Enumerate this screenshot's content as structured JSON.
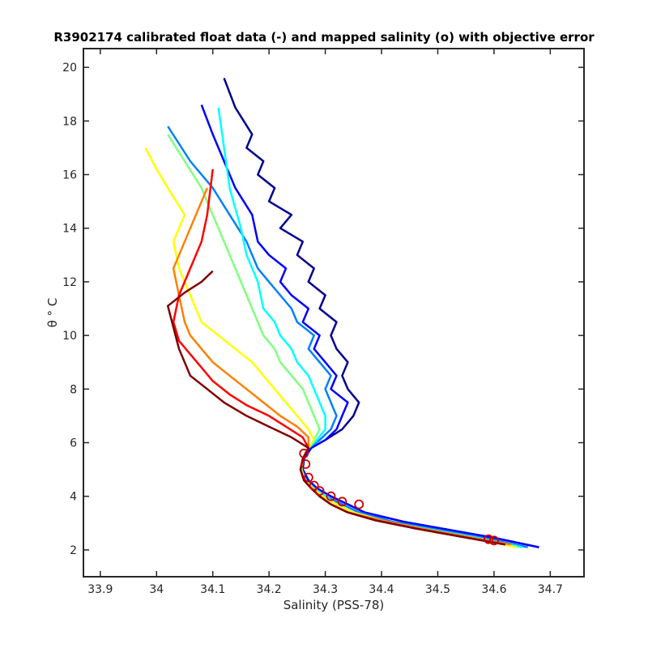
{
  "chart_data": {
    "type": "line",
    "title": "R3902174 calibrated float data (-) and mapped salinity (o) with objective error",
    "xlabel": "Salinity (PSS-78)",
    "ylabel": "θ ° C",
    "xlim": [
      33.87,
      34.76
    ],
    "ylim": [
      1.0,
      20.7
    ],
    "xticks": [
      "33.9",
      "34",
      "34.1",
      "34.2",
      "34.3",
      "34.4",
      "34.5",
      "34.6",
      "34.7"
    ],
    "yticks": [
      "2",
      "4",
      "6",
      "8",
      "10",
      "12",
      "14",
      "16",
      "18",
      "20"
    ],
    "grid": false,
    "legend": "none",
    "colormap": "jet",
    "series": [
      {
        "color": "#00008f",
        "x": [
          34.68,
          34.6,
          34.52,
          34.44,
          34.37,
          34.34,
          34.31,
          34.285,
          34.27,
          34.26,
          34.262,
          34.275,
          34.3,
          34.33,
          34.35,
          34.36,
          34.34,
          34.33,
          34.34,
          34.32,
          34.31,
          34.32,
          34.29,
          34.3,
          34.27,
          34.28,
          34.25,
          34.26,
          34.22,
          34.24,
          34.2,
          34.21,
          34.18,
          34.19,
          34.16,
          34.17,
          34.14,
          34.12
        ],
        "y": [
          2.1,
          2.45,
          2.75,
          3.05,
          3.4,
          3.7,
          4.0,
          4.3,
          4.6,
          5.0,
          5.4,
          5.8,
          6.1,
          6.5,
          7.0,
          7.5,
          8.0,
          8.5,
          9.0,
          9.5,
          10.0,
          10.5,
          11.0,
          11.5,
          12.0,
          12.5,
          13.0,
          13.5,
          14.0,
          14.5,
          15.0,
          15.5,
          16.0,
          16.5,
          17.0,
          17.5,
          18.5,
          19.6
        ]
      },
      {
        "color": "#0000ff",
        "x": [
          34.68,
          34.6,
          34.52,
          34.44,
          34.37,
          34.34,
          34.31,
          34.285,
          34.27,
          34.26,
          34.262,
          34.275,
          34.3,
          34.32,
          34.33,
          34.34,
          34.31,
          34.32,
          34.3,
          34.28,
          34.29,
          34.26,
          34.27,
          34.24,
          34.22,
          34.23,
          34.2,
          34.18,
          34.17,
          34.14,
          34.12,
          34.1,
          34.08
        ],
        "y": [
          2.1,
          2.45,
          2.75,
          3.05,
          3.4,
          3.7,
          4.0,
          4.3,
          4.6,
          5.0,
          5.4,
          5.8,
          6.1,
          6.5,
          7.0,
          7.5,
          8.0,
          8.5,
          9.0,
          9.5,
          10.0,
          10.5,
          11.0,
          11.5,
          12.0,
          12.5,
          13.0,
          13.5,
          14.5,
          15.5,
          16.5,
          17.5,
          18.6
        ]
      },
      {
        "color": "#0080ff",
        "x": [
          34.66,
          34.58,
          34.5,
          34.42,
          34.36,
          34.33,
          34.3,
          34.28,
          34.265,
          34.258,
          34.26,
          34.27,
          34.29,
          34.31,
          34.32,
          34.31,
          34.3,
          34.31,
          34.29,
          34.27,
          34.28,
          34.25,
          34.24,
          34.22,
          34.2,
          34.18,
          34.16,
          34.13,
          34.1,
          34.06,
          34.02
        ],
        "y": [
          2.1,
          2.45,
          2.75,
          3.05,
          3.4,
          3.7,
          4.0,
          4.3,
          4.6,
          5.0,
          5.4,
          5.8,
          6.1,
          6.5,
          7.0,
          7.5,
          8.0,
          8.5,
          9.0,
          9.5,
          10.0,
          10.5,
          11.0,
          11.5,
          12.0,
          12.5,
          13.5,
          14.5,
          15.5,
          16.5,
          17.8
        ]
      },
      {
        "color": "#00ffff",
        "x": [
          34.65,
          34.57,
          34.49,
          34.41,
          34.35,
          34.32,
          34.3,
          34.28,
          34.265,
          34.258,
          34.26,
          34.27,
          34.285,
          34.3,
          34.3,
          34.29,
          34.28,
          34.27,
          34.25,
          34.24,
          34.22,
          34.21,
          34.19,
          34.18,
          34.16,
          34.15,
          34.13,
          34.12,
          34.11
        ],
        "y": [
          2.1,
          2.45,
          2.75,
          3.05,
          3.4,
          3.7,
          4.0,
          4.3,
          4.6,
          5.0,
          5.4,
          5.8,
          6.1,
          6.5,
          7.0,
          7.5,
          8.0,
          8.5,
          9.0,
          9.5,
          10.0,
          10.5,
          11.0,
          12.0,
          13.0,
          14.0,
          15.5,
          17.0,
          18.5
        ]
      },
      {
        "color": "#80ff80",
        "x": [
          34.64,
          34.56,
          34.48,
          34.41,
          34.35,
          34.32,
          34.295,
          34.278,
          34.264,
          34.257,
          34.26,
          34.27,
          34.28,
          34.29,
          34.28,
          34.27,
          34.26,
          34.24,
          34.22,
          34.21,
          34.19,
          34.18,
          34.16,
          34.14,
          34.12,
          34.1,
          34.08,
          34.05,
          34.02
        ],
        "y": [
          2.1,
          2.45,
          2.75,
          3.05,
          3.4,
          3.7,
          4.0,
          4.3,
          4.6,
          5.0,
          5.4,
          5.8,
          6.1,
          6.5,
          7.0,
          7.5,
          8.0,
          8.5,
          9.0,
          9.5,
          10.0,
          10.5,
          11.5,
          12.5,
          13.5,
          14.5,
          15.5,
          16.5,
          17.5
        ]
      },
      {
        "color": "#ffff00",
        "x": [
          34.64,
          34.56,
          34.48,
          34.41,
          34.35,
          34.32,
          34.295,
          34.278,
          34.264,
          34.257,
          34.26,
          34.27,
          34.28,
          34.27,
          34.25,
          34.23,
          34.21,
          34.19,
          34.17,
          34.14,
          34.11,
          34.08,
          34.06,
          34.04,
          34.03,
          34.05,
          34.02,
          34.0,
          33.98
        ],
        "y": [
          2.1,
          2.45,
          2.75,
          3.05,
          3.4,
          3.7,
          4.0,
          4.3,
          4.6,
          5.0,
          5.4,
          5.8,
          6.1,
          6.5,
          7.0,
          7.5,
          8.0,
          8.5,
          9.0,
          9.5,
          10.0,
          10.5,
          11.5,
          12.5,
          13.5,
          14.5,
          15.5,
          16.2,
          17.0
        ]
      },
      {
        "color": "#ff8000",
        "x": [
          34.63,
          34.55,
          34.47,
          34.4,
          34.34,
          34.31,
          34.29,
          34.275,
          34.262,
          34.256,
          34.26,
          34.27,
          34.27,
          34.25,
          34.22,
          34.19,
          34.16,
          34.13,
          34.1,
          34.08,
          34.06,
          34.05,
          34.04,
          34.03,
          34.05,
          34.07,
          34.09
        ],
        "y": [
          2.2,
          2.5,
          2.8,
          3.1,
          3.4,
          3.7,
          4.0,
          4.3,
          4.6,
          5.0,
          5.4,
          5.8,
          6.2,
          6.6,
          7.0,
          7.5,
          8.0,
          8.5,
          9.0,
          9.5,
          10.0,
          10.5,
          11.5,
          12.5,
          13.5,
          14.5,
          15.5
        ]
      },
      {
        "color": "#ff0000",
        "x": [
          34.62,
          34.54,
          34.46,
          34.39,
          34.34,
          34.31,
          34.29,
          34.275,
          34.262,
          34.256,
          34.26,
          34.27,
          34.26,
          34.23,
          34.2,
          34.16,
          34.13,
          34.1,
          34.08,
          34.06,
          34.04,
          34.03,
          34.04,
          34.06,
          34.08,
          34.09,
          34.1
        ],
        "y": [
          2.2,
          2.5,
          2.8,
          3.1,
          3.4,
          3.7,
          4.0,
          4.3,
          4.6,
          5.0,
          5.4,
          5.8,
          6.2,
          6.6,
          7.0,
          7.4,
          7.8,
          8.3,
          8.8,
          9.3,
          9.8,
          10.5,
          11.5,
          12.5,
          13.5,
          14.5,
          16.2
        ]
      },
      {
        "color": "#800000",
        "x": [
          34.62,
          34.54,
          34.46,
          34.39,
          34.34,
          34.31,
          34.29,
          34.275,
          34.262,
          34.256,
          34.26,
          34.27,
          34.24,
          34.2,
          34.16,
          34.12,
          34.09,
          34.06,
          34.04,
          34.02,
          34.05,
          34.08,
          34.1
        ],
        "y": [
          2.2,
          2.5,
          2.8,
          3.1,
          3.4,
          3.7,
          4.0,
          4.3,
          4.6,
          5.0,
          5.4,
          5.8,
          6.2,
          6.6,
          7.0,
          7.5,
          8.0,
          8.5,
          9.5,
          11.1,
          11.6,
          12.0,
          12.4
        ]
      }
    ],
    "mapped_points": {
      "color": "#cc0000",
      "x": [
        34.59,
        34.6,
        34.36,
        34.33,
        34.31,
        34.29,
        34.28,
        34.27,
        34.265,
        34.262
      ],
      "y": [
        2.4,
        2.35,
        3.7,
        3.8,
        4.0,
        4.2,
        4.4,
        4.7,
        5.2,
        5.6
      ]
    }
  }
}
